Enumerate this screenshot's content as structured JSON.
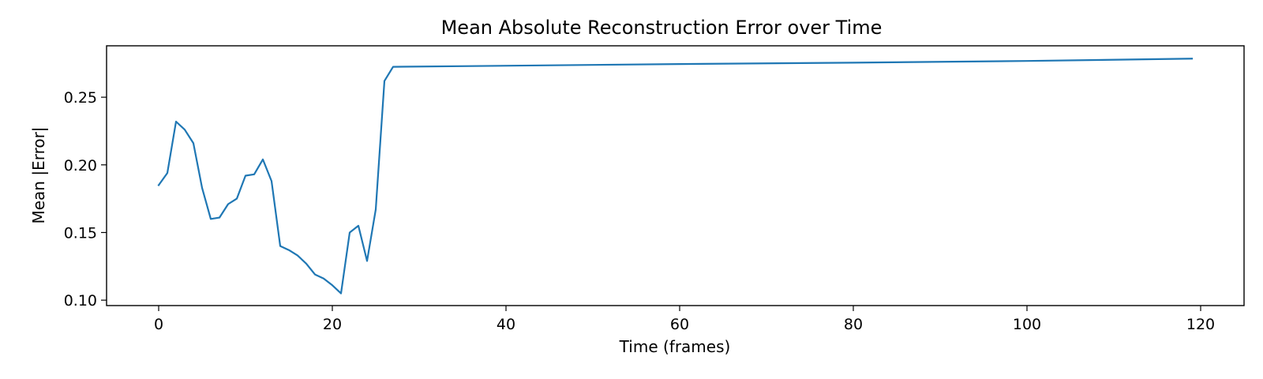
{
  "chart_data": {
    "type": "line",
    "title": "Mean Absolute Reconstruction Error over Time",
    "xlabel": "Time (frames)",
    "ylabel": "Mean |Error|",
    "xlim": [
      -6,
      125
    ],
    "ylim": [
      0.096,
      0.288
    ],
    "xticks": [
      0,
      20,
      40,
      60,
      80,
      100,
      120
    ],
    "yticks": [
      0.1,
      0.15,
      0.2,
      0.25
    ],
    "grid": false,
    "series": [
      {
        "color": "#1f77b4",
        "x": [
          0,
          1,
          2,
          3,
          4,
          5,
          6,
          7,
          8,
          9,
          10,
          11,
          12,
          13,
          14,
          15,
          16,
          17,
          18,
          19,
          20,
          21,
          22,
          23,
          24,
          25,
          26,
          27,
          36,
          60,
          80,
          100,
          119
        ],
        "y": [
          0.185,
          0.194,
          0.232,
          0.226,
          0.216,
          0.183,
          0.16,
          0.161,
          0.171,
          0.175,
          0.192,
          0.193,
          0.204,
          0.188,
          0.14,
          0.137,
          0.133,
          0.127,
          0.119,
          0.116,
          0.111,
          0.105,
          0.15,
          0.155,
          0.129,
          0.167,
          0.262,
          0.2725,
          0.273,
          0.2745,
          0.2755,
          0.2768,
          0.2785
        ]
      }
    ]
  }
}
